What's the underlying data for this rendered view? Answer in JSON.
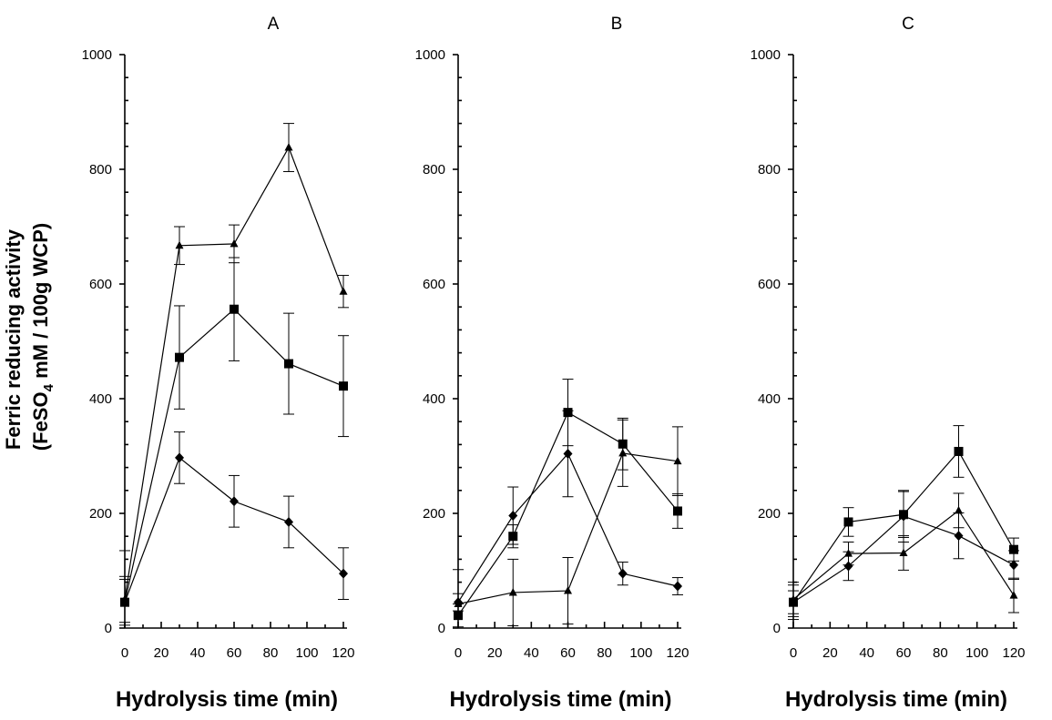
{
  "figure": {
    "ylabel_line1": "Ferric reducing activity",
    "ylabel_line2_prefix": "(FeSO",
    "ylabel_line2_sub": "4",
    "ylabel_line2_suffix": " mM / 100g WCP)"
  },
  "chart_data": [
    {
      "type": "line",
      "title": "A",
      "xlabel": "Hydrolysis time (min)",
      "ylabel": "Ferric reducing activity (FeSO4 mM / 100g WCP)",
      "xlim": [
        0,
        120
      ],
      "ylim": [
        0,
        1000
      ],
      "xticks": [
        0,
        20,
        40,
        60,
        80,
        100,
        120
      ],
      "yticks": [
        0,
        200,
        400,
        600,
        800,
        1000
      ],
      "x": [
        0,
        30,
        60,
        90,
        120
      ],
      "series": [
        {
          "name": "triangle",
          "marker": "triangle",
          "values": [
            50,
            667,
            670,
            838,
            587
          ],
          "errors": [
            40,
            33,
            33,
            42,
            28
          ]
        },
        {
          "name": "square",
          "marker": "square",
          "values": [
            45,
            472,
            556,
            461,
            422
          ],
          "errors": [
            90,
            90,
            90,
            88,
            88
          ]
        },
        {
          "name": "diamond",
          "marker": "diamond",
          "values": [
            45,
            297,
            221,
            185,
            95
          ],
          "errors": [
            40,
            45,
            45,
            45,
            45
          ]
        }
      ]
    },
    {
      "type": "line",
      "title": "B",
      "xlabel": "Hydrolysis time (min)",
      "ylabel": "",
      "xlim": [
        0,
        120
      ],
      "ylim": [
        0,
        1000
      ],
      "xticks": [
        0,
        20,
        40,
        60,
        80,
        100,
        120
      ],
      "yticks": [
        0,
        200,
        400,
        600,
        800,
        1000
      ],
      "x": [
        0,
        30,
        60,
        90,
        120
      ],
      "series": [
        {
          "name": "triangle",
          "marker": "triangle",
          "values": [
            42,
            62,
            65,
            305,
            291
          ],
          "errors": [
            60,
            58,
            58,
            58,
            60
          ]
        },
        {
          "name": "square",
          "marker": "square",
          "values": [
            22,
            160,
            376,
            321,
            204
          ],
          "errors": [
            20,
            20,
            58,
            45,
            30
          ]
        },
        {
          "name": "diamond",
          "marker": "diamond",
          "values": [
            45,
            196,
            304,
            95,
            73
          ],
          "errors": [
            15,
            50,
            75,
            20,
            15
          ]
        }
      ]
    },
    {
      "type": "line",
      "title": "C",
      "xlabel": "Hydrolysis time (min)",
      "ylabel": "",
      "xlim": [
        0,
        120
      ],
      "ylim": [
        0,
        1000
      ],
      "xticks": [
        0,
        20,
        40,
        60,
        80,
        100,
        120
      ],
      "yticks": [
        0,
        200,
        400,
        600,
        800,
        1000
      ],
      "x": [
        0,
        30,
        60,
        90,
        120
      ],
      "series": [
        {
          "name": "triangle",
          "marker": "triangle",
          "values": [
            50,
            130,
            131,
            205,
            57
          ],
          "errors": [
            30,
            20,
            30,
            30,
            30
          ]
        },
        {
          "name": "square",
          "marker": "square",
          "values": [
            45,
            185,
            198,
            308,
            137
          ],
          "errors": [
            30,
            25,
            40,
            45,
            20
          ]
        },
        {
          "name": "diamond",
          "marker": "diamond",
          "values": [
            45,
            108,
            195,
            161,
            110
          ],
          "errors": [
            20,
            25,
            45,
            40,
            25
          ]
        }
      ]
    }
  ]
}
